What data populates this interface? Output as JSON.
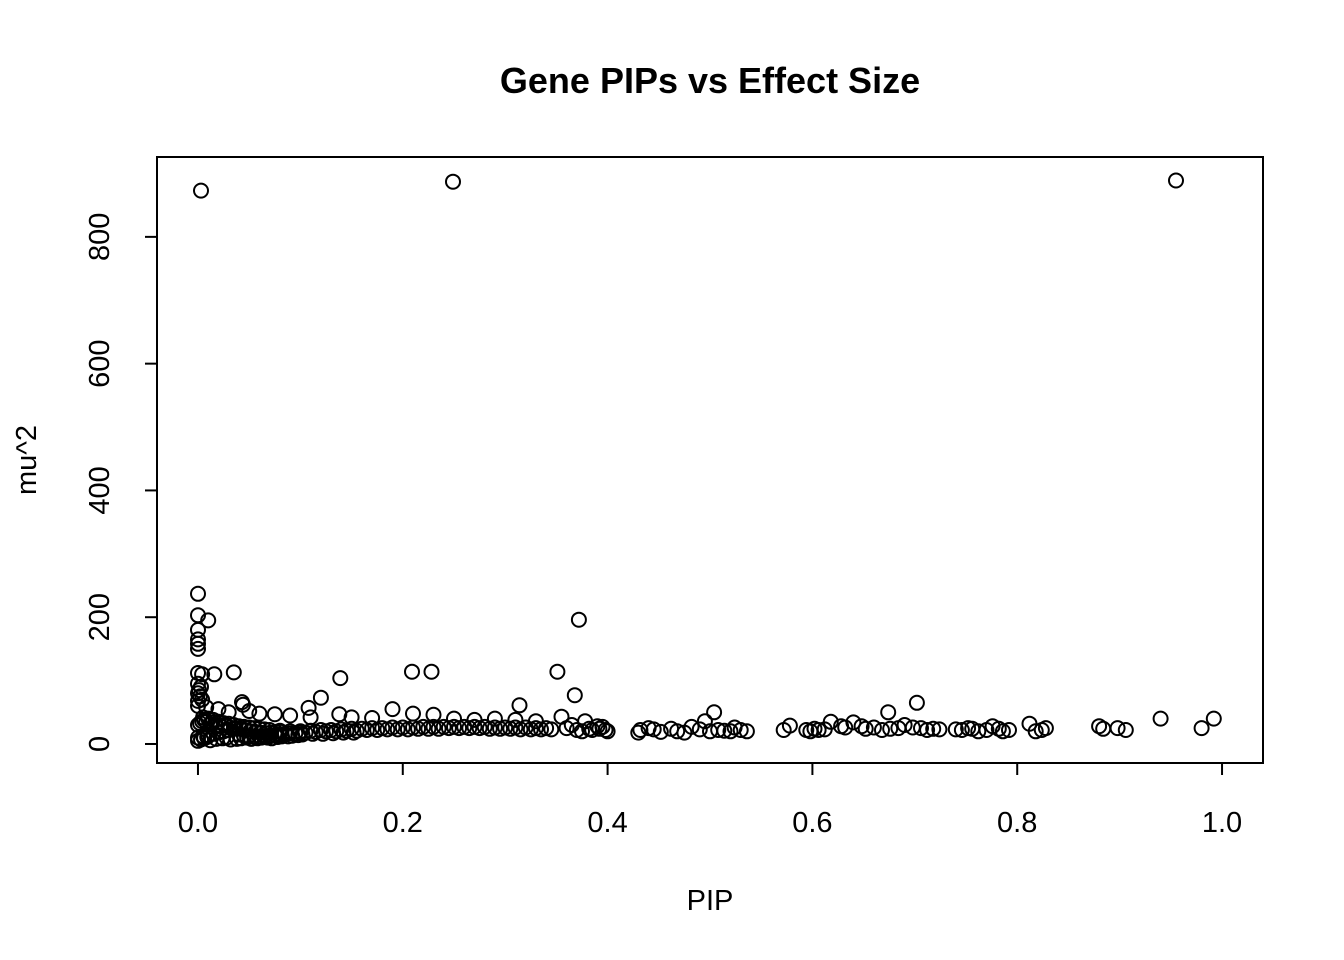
{
  "chart_data": {
    "type": "scatter",
    "title": "Gene PIPs vs Effect Size",
    "xlabel": "PIP",
    "ylabel": "mu^2",
    "xlim": [
      -0.04,
      1.04
    ],
    "ylim": [
      -30,
      926
    ],
    "xticks": [
      0.0,
      0.2,
      0.4,
      0.6,
      0.8,
      1.0
    ],
    "xtick_labels": [
      "0.0",
      "0.2",
      "0.4",
      "0.6",
      "0.8",
      "1.0"
    ],
    "yticks": [
      0,
      200,
      400,
      600,
      800
    ],
    "ytick_labels": [
      "0",
      "200",
      "400",
      "600",
      "800"
    ],
    "grid": false,
    "legend": "none",
    "marker": "open-circle",
    "color": "#000000",
    "points": [
      [
        0.003,
        873
      ],
      [
        0.249,
        887
      ],
      [
        0.955,
        889
      ],
      [
        0.0,
        237
      ],
      [
        0.0,
        203
      ],
      [
        0.01,
        195
      ],
      [
        0.0,
        180
      ],
      [
        0.0,
        165
      ],
      [
        0.0,
        158
      ],
      [
        0.0,
        150
      ],
      [
        0.372,
        196
      ],
      [
        0.0,
        112
      ],
      [
        0.004,
        110
      ],
      [
        0.016,
        110
      ],
      [
        0.035,
        113
      ],
      [
        0.209,
        114
      ],
      [
        0.228,
        114
      ],
      [
        0.351,
        114
      ],
      [
        0.139,
        104
      ],
      [
        0.0,
        95
      ],
      [
        0.003,
        90
      ],
      [
        0.001,
        85
      ],
      [
        0.0,
        80
      ],
      [
        0.002,
        75
      ],
      [
        0.004,
        70
      ],
      [
        0.12,
        73
      ],
      [
        0.368,
        77
      ],
      [
        0.0,
        68
      ],
      [
        0.043,
        66
      ],
      [
        0.044,
        62
      ],
      [
        0.314,
        61
      ],
      [
        0.0,
        60
      ],
      [
        0.008,
        58
      ],
      [
        0.02,
        55
      ],
      [
        0.03,
        50
      ],
      [
        0.05,
        52
      ],
      [
        0.06,
        48
      ],
      [
        0.075,
        47
      ],
      [
        0.09,
        45
      ],
      [
        0.108,
        57
      ],
      [
        0.11,
        42
      ],
      [
        0.138,
        47
      ],
      [
        0.15,
        42
      ],
      [
        0.17,
        41
      ],
      [
        0.19,
        55
      ],
      [
        0.21,
        48
      ],
      [
        0.23,
        46
      ],
      [
        0.25,
        40
      ],
      [
        0.27,
        38
      ],
      [
        0.29,
        40
      ],
      [
        0.31,
        38
      ],
      [
        0.33,
        36
      ],
      [
        0.355,
        43
      ],
      [
        0.365,
        30
      ],
      [
        0.378,
        36
      ],
      [
        0.39,
        28
      ],
      [
        0.395,
        27
      ],
      [
        0.005,
        42
      ],
      [
        0.01,
        40
      ],
      [
        0.015,
        38
      ],
      [
        0.02,
        35
      ],
      [
        0.025,
        33
      ],
      [
        0.03,
        32
      ],
      [
        0.035,
        30
      ],
      [
        0.04,
        28
      ],
      [
        0.045,
        27
      ],
      [
        0.05,
        26
      ],
      [
        0.055,
        25
      ],
      [
        0.06,
        24
      ],
      [
        0.065,
        23
      ],
      [
        0.07,
        22
      ],
      [
        0.08,
        21
      ],
      [
        0.09,
        20
      ],
      [
        0.1,
        20
      ],
      [
        0.11,
        21
      ],
      [
        0.12,
        22
      ],
      [
        0.13,
        22
      ],
      [
        0.14,
        23
      ],
      [
        0.15,
        24
      ],
      [
        0.16,
        24
      ],
      [
        0.17,
        25
      ],
      [
        0.18,
        25
      ],
      [
        0.19,
        26
      ],
      [
        0.2,
        26
      ],
      [
        0.21,
        26
      ],
      [
        0.22,
        27
      ],
      [
        0.23,
        27
      ],
      [
        0.24,
        27
      ],
      [
        0.25,
        27
      ],
      [
        0.26,
        27
      ],
      [
        0.27,
        27
      ],
      [
        0.28,
        27
      ],
      [
        0.29,
        26
      ],
      [
        0.3,
        26
      ],
      [
        0.31,
        26
      ],
      [
        0.32,
        26
      ],
      [
        0.33,
        25
      ],
      [
        0.34,
        25
      ],
      [
        0.0,
        10
      ],
      [
        0.005,
        12
      ],
      [
        0.01,
        14
      ],
      [
        0.015,
        16
      ],
      [
        0.02,
        18
      ],
      [
        0.025,
        20
      ],
      [
        0.03,
        22
      ],
      [
        0.035,
        24
      ],
      [
        0.04,
        15
      ],
      [
        0.045,
        13
      ],
      [
        0.05,
        12
      ],
      [
        0.055,
        11
      ],
      [
        0.06,
        11
      ],
      [
        0.065,
        12
      ],
      [
        0.07,
        13
      ],
      [
        0.075,
        14
      ],
      [
        0.08,
        15
      ],
      [
        0.085,
        16
      ],
      [
        0.09,
        17
      ],
      [
        0.095,
        17
      ],
      [
        0.1,
        18
      ],
      [
        0.105,
        18
      ],
      [
        0.115,
        19
      ],
      [
        0.125,
        20
      ],
      [
        0.135,
        20
      ],
      [
        0.145,
        21
      ],
      [
        0.155,
        21
      ],
      [
        0.165,
        22
      ],
      [
        0.175,
        22
      ],
      [
        0.185,
        23
      ],
      [
        0.195,
        23
      ],
      [
        0.205,
        23
      ],
      [
        0.215,
        24
      ],
      [
        0.225,
        24
      ],
      [
        0.235,
        24
      ],
      [
        0.245,
        25
      ],
      [
        0.255,
        25
      ],
      [
        0.265,
        25
      ],
      [
        0.275,
        25
      ],
      [
        0.285,
        24
      ],
      [
        0.295,
        24
      ],
      [
        0.305,
        24
      ],
      [
        0.315,
        23
      ],
      [
        0.325,
        23
      ],
      [
        0.335,
        23
      ],
      [
        0.345,
        23
      ],
      [
        0.0,
        5
      ],
      [
        0.003,
        7
      ],
      [
        0.006,
        9
      ],
      [
        0.009,
        11
      ],
      [
        0.012,
        6
      ],
      [
        0.018,
        8
      ],
      [
        0.024,
        9
      ],
      [
        0.028,
        10
      ],
      [
        0.032,
        7
      ],
      [
        0.038,
        8
      ],
      [
        0.042,
        9
      ],
      [
        0.048,
        10
      ],
      [
        0.052,
        8
      ],
      [
        0.058,
        9
      ],
      [
        0.062,
        10
      ],
      [
        0.068,
        10
      ],
      [
        0.072,
        9
      ],
      [
        0.078,
        11
      ],
      [
        0.082,
        12
      ],
      [
        0.088,
        12
      ],
      [
        0.092,
        13
      ],
      [
        0.098,
        14
      ],
      [
        0.102,
        15
      ],
      [
        0.112,
        16
      ],
      [
        0.122,
        16
      ],
      [
        0.132,
        17
      ],
      [
        0.142,
        18
      ],
      [
        0.152,
        18
      ],
      [
        0.0,
        30
      ],
      [
        0.002,
        33
      ],
      [
        0.004,
        36
      ],
      [
        0.006,
        38
      ],
      [
        0.008,
        35
      ],
      [
        0.012,
        31
      ],
      [
        0.014,
        34
      ],
      [
        0.018,
        29
      ],
      [
        0.022,
        28
      ],
      [
        0.026,
        30
      ],
      [
        0.031,
        26
      ],
      [
        0.036,
        25
      ],
      [
        0.041,
        24
      ],
      [
        0.046,
        22
      ],
      [
        0.051,
        20
      ],
      [
        0.056,
        19
      ],
      [
        0.061,
        18
      ],
      [
        0.066,
        17
      ],
      [
        0.071,
        18
      ],
      [
        0.076,
        19
      ],
      [
        0.081,
        19
      ],
      [
        0.36,
        25
      ],
      [
        0.37,
        22
      ],
      [
        0.375,
        20
      ],
      [
        0.382,
        24
      ],
      [
        0.385,
        22
      ],
      [
        0.392,
        24
      ],
      [
        0.398,
        22
      ],
      [
        0.4,
        20
      ],
      [
        0.43,
        18
      ],
      [
        0.432,
        22
      ],
      [
        0.44,
        25
      ],
      [
        0.445,
        23
      ],
      [
        0.452,
        19
      ],
      [
        0.462,
        24
      ],
      [
        0.468,
        20
      ],
      [
        0.475,
        18
      ],
      [
        0.482,
        27
      ],
      [
        0.49,
        23
      ],
      [
        0.495,
        36
      ],
      [
        0.5,
        20
      ],
      [
        0.504,
        50
      ],
      [
        0.508,
        22
      ],
      [
        0.514,
        21
      ],
      [
        0.52,
        20
      ],
      [
        0.524,
        26
      ],
      [
        0.53,
        22
      ],
      [
        0.536,
        20
      ],
      [
        0.572,
        22
      ],
      [
        0.578,
        29
      ],
      [
        0.594,
        22
      ],
      [
        0.598,
        20
      ],
      [
        0.602,
        24
      ],
      [
        0.606,
        22
      ],
      [
        0.612,
        23
      ],
      [
        0.618,
        35
      ],
      [
        0.628,
        28
      ],
      [
        0.632,
        26
      ],
      [
        0.64,
        34
      ],
      [
        0.648,
        28
      ],
      [
        0.652,
        24
      ],
      [
        0.66,
        26
      ],
      [
        0.668,
        22
      ],
      [
        0.674,
        50
      ],
      [
        0.676,
        24
      ],
      [
        0.684,
        25
      ],
      [
        0.69,
        30
      ],
      [
        0.698,
        26
      ],
      [
        0.702,
        65
      ],
      [
        0.706,
        25
      ],
      [
        0.712,
        22
      ],
      [
        0.718,
        24
      ],
      [
        0.724,
        23
      ],
      [
        0.74,
        23
      ],
      [
        0.746,
        22
      ],
      [
        0.752,
        25
      ],
      [
        0.756,
        24
      ],
      [
        0.762,
        20
      ],
      [
        0.77,
        22
      ],
      [
        0.776,
        28
      ],
      [
        0.782,
        24
      ],
      [
        0.786,
        20
      ],
      [
        0.792,
        22
      ],
      [
        0.812,
        32
      ],
      [
        0.818,
        20
      ],
      [
        0.824,
        22
      ],
      [
        0.828,
        25
      ],
      [
        0.88,
        28
      ],
      [
        0.884,
        24
      ],
      [
        0.898,
        25
      ],
      [
        0.906,
        22
      ],
      [
        0.94,
        40
      ],
      [
        0.98,
        25
      ],
      [
        0.992,
        40
      ]
    ]
  }
}
